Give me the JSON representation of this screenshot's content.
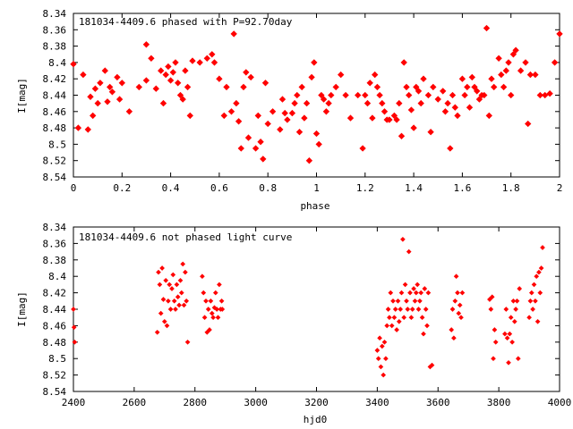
{
  "chart_data": [
    {
      "type": "scatter",
      "title": "181034-4409.6 phased with P=92.70day",
      "xlabel": "phase",
      "ylabel": "I[mag]",
      "xlim": [
        0,
        2
      ],
      "ylim": [
        8.54,
        8.34
      ],
      "y_inverted": true,
      "grid": false,
      "marker_color": "#ff0000",
      "xticks": [
        "0",
        "0.2",
        "0.4",
        "0.6",
        "0.8",
        "1",
        "1.2",
        "1.4",
        "1.6",
        "1.8",
        "2"
      ],
      "yticks": [
        "8.34",
        "8.36",
        "8.38",
        "8.4",
        "8.42",
        "8.44",
        "8.46",
        "8.48",
        "8.5",
        "8.52",
        "8.54"
      ],
      "points": [
        [
          0.0,
          8.402
        ],
        [
          0.02,
          8.48
        ],
        [
          0.04,
          8.415
        ],
        [
          0.06,
          8.482
        ],
        [
          0.07,
          8.442
        ],
        [
          0.08,
          8.465
        ],
        [
          0.09,
          8.432
        ],
        [
          0.1,
          8.45
        ],
        [
          0.11,
          8.425
        ],
        [
          0.13,
          8.41
        ],
        [
          0.14,
          8.448
        ],
        [
          0.15,
          8.43
        ],
        [
          0.16,
          8.436
        ],
        [
          0.18,
          8.418
        ],
        [
          0.19,
          8.445
        ],
        [
          0.2,
          8.425
        ],
        [
          0.23,
          8.46
        ],
        [
          0.27,
          8.43
        ],
        [
          0.3,
          8.378
        ],
        [
          0.3,
          8.422
        ],
        [
          0.32,
          8.395
        ],
        [
          0.34,
          8.432
        ],
        [
          0.36,
          8.41
        ],
        [
          0.37,
          8.45
        ],
        [
          0.38,
          8.415
        ],
        [
          0.39,
          8.405
        ],
        [
          0.4,
          8.422
        ],
        [
          0.41,
          8.412
        ],
        [
          0.42,
          8.4
        ],
        [
          0.43,
          8.425
        ],
        [
          0.44,
          8.44
        ],
        [
          0.45,
          8.445
        ],
        [
          0.46,
          8.41
        ],
        [
          0.47,
          8.43
        ],
        [
          0.48,
          8.465
        ],
        [
          0.49,
          8.398
        ],
        [
          0.52,
          8.4
        ],
        [
          0.55,
          8.395
        ],
        [
          0.57,
          8.39
        ],
        [
          0.58,
          8.4
        ],
        [
          0.6,
          8.42
        ],
        [
          0.62,
          8.465
        ],
        [
          0.63,
          8.43
        ],
        [
          0.65,
          8.46
        ],
        [
          0.66,
          8.365
        ],
        [
          0.67,
          8.45
        ],
        [
          0.68,
          8.472
        ],
        [
          0.69,
          8.505
        ],
        [
          0.7,
          8.43
        ],
        [
          0.71,
          8.412
        ],
        [
          0.72,
          8.492
        ],
        [
          0.73,
          8.418
        ],
        [
          0.75,
          8.505
        ],
        [
          0.76,
          8.465
        ],
        [
          0.77,
          8.497
        ],
        [
          0.78,
          8.518
        ],
        [
          0.79,
          8.425
        ],
        [
          0.8,
          8.475
        ],
        [
          0.82,
          8.46
        ],
        [
          0.85,
          8.482
        ],
        [
          0.86,
          8.445
        ],
        [
          0.87,
          8.462
        ],
        [
          0.88,
          8.47
        ],
        [
          0.9,
          8.462
        ],
        [
          0.91,
          8.45
        ],
        [
          0.92,
          8.44
        ],
        [
          0.93,
          8.485
        ],
        [
          0.94,
          8.43
        ],
        [
          0.95,
          8.468
        ],
        [
          0.96,
          8.45
        ],
        [
          0.97,
          8.52
        ],
        [
          0.98,
          8.418
        ],
        [
          0.99,
          8.4
        ],
        [
          1.0,
          8.487
        ],
        [
          1.01,
          8.5
        ],
        [
          1.02,
          8.44
        ],
        [
          1.03,
          8.445
        ],
        [
          1.04,
          8.46
        ],
        [
          1.05,
          8.45
        ],
        [
          1.06,
          8.44
        ],
        [
          1.08,
          8.43
        ],
        [
          1.1,
          8.415
        ],
        [
          1.12,
          8.44
        ],
        [
          1.14,
          8.468
        ],
        [
          1.17,
          8.44
        ],
        [
          1.19,
          8.505
        ],
        [
          1.2,
          8.44
        ],
        [
          1.21,
          8.45
        ],
        [
          1.22,
          8.425
        ],
        [
          1.23,
          8.468
        ],
        [
          1.24,
          8.415
        ],
        [
          1.25,
          8.43
        ],
        [
          1.26,
          8.44
        ],
        [
          1.27,
          8.45
        ],
        [
          1.28,
          8.46
        ],
        [
          1.29,
          8.47
        ],
        [
          1.3,
          8.47
        ],
        [
          1.32,
          8.465
        ],
        [
          1.33,
          8.47
        ],
        [
          1.34,
          8.45
        ],
        [
          1.35,
          8.49
        ],
        [
          1.36,
          8.4
        ],
        [
          1.37,
          8.43
        ],
        [
          1.38,
          8.44
        ],
        [
          1.39,
          8.458
        ],
        [
          1.4,
          8.48
        ],
        [
          1.41,
          8.43
        ],
        [
          1.42,
          8.435
        ],
        [
          1.43,
          8.45
        ],
        [
          1.44,
          8.42
        ],
        [
          1.46,
          8.44
        ],
        [
          1.47,
          8.485
        ],
        [
          1.48,
          8.43
        ],
        [
          1.5,
          8.445
        ],
        [
          1.52,
          8.435
        ],
        [
          1.53,
          8.46
        ],
        [
          1.54,
          8.45
        ],
        [
          1.55,
          8.505
        ],
        [
          1.56,
          8.44
        ],
        [
          1.57,
          8.455
        ],
        [
          1.58,
          8.465
        ],
        [
          1.6,
          8.42
        ],
        [
          1.61,
          8.44
        ],
        [
          1.62,
          8.43
        ],
        [
          1.63,
          8.455
        ],
        [
          1.64,
          8.418
        ],
        [
          1.65,
          8.43
        ],
        [
          1.66,
          8.435
        ],
        [
          1.67,
          8.445
        ],
        [
          1.68,
          8.44
        ],
        [
          1.69,
          8.44
        ],
        [
          1.7,
          8.358
        ],
        [
          1.71,
          8.465
        ],
        [
          1.72,
          8.42
        ],
        [
          1.73,
          8.43
        ],
        [
          1.75,
          8.395
        ],
        [
          1.76,
          8.415
        ],
        [
          1.77,
          8.43
        ],
        [
          1.78,
          8.41
        ],
        [
          1.79,
          8.4
        ],
        [
          1.8,
          8.44
        ],
        [
          1.81,
          8.39
        ],
        [
          1.82,
          8.385
        ],
        [
          1.84,
          8.41
        ],
        [
          1.86,
          8.4
        ],
        [
          1.87,
          8.475
        ],
        [
          1.88,
          8.415
        ],
        [
          1.9,
          8.415
        ],
        [
          1.92,
          8.44
        ],
        [
          1.94,
          8.44
        ],
        [
          1.96,
          8.438
        ],
        [
          1.98,
          8.4
        ],
        [
          2.0,
          8.365
        ]
      ]
    },
    {
      "type": "scatter",
      "title": "181034-4409.6 not phased light curve",
      "xlabel": "hjd0",
      "ylabel": "I[mag]",
      "xlim": [
        2400,
        4000
      ],
      "ylim": [
        8.54,
        8.34
      ],
      "y_inverted": true,
      "grid": false,
      "marker_color": "#ff0000",
      "xticks": [
        "2400",
        "2600",
        "2800",
        "3000",
        "3200",
        "3400",
        "3600",
        "3800",
        "4000"
      ],
      "yticks": [
        "8.34",
        "8.36",
        "8.38",
        "8.4",
        "8.42",
        "8.44",
        "8.46",
        "8.48",
        "8.5",
        "8.52",
        "8.54"
      ],
      "points": [
        [
          2400,
          8.44
        ],
        [
          2402,
          8.462
        ],
        [
          2404,
          8.48
        ],
        [
          2676,
          8.468
        ],
        [
          2680,
          8.395
        ],
        [
          2684,
          8.41
        ],
        [
          2688,
          8.445
        ],
        [
          2692,
          8.39
        ],
        [
          2696,
          8.428
        ],
        [
          2700,
          8.455
        ],
        [
          2704,
          8.405
        ],
        [
          2708,
          8.46
        ],
        [
          2712,
          8.43
        ],
        [
          2716,
          8.41
        ],
        [
          2720,
          8.44
        ],
        [
          2724,
          8.415
        ],
        [
          2728,
          8.398
        ],
        [
          2732,
          8.43
        ],
        [
          2736,
          8.44
        ],
        [
          2740,
          8.41
        ],
        [
          2744,
          8.425
        ],
        [
          2748,
          8.435
        ],
        [
          2752,
          8.405
        ],
        [
          2756,
          8.42
        ],
        [
          2760,
          8.385
        ],
        [
          2764,
          8.435
        ],
        [
          2768,
          8.395
        ],
        [
          2772,
          8.43
        ],
        [
          2776,
          8.48
        ],
        [
          2824,
          8.4
        ],
        [
          2828,
          8.42
        ],
        [
          2832,
          8.45
        ],
        [
          2836,
          8.43
        ],
        [
          2840,
          8.468
        ],
        [
          2844,
          8.44
        ],
        [
          2848,
          8.465
        ],
        [
          2852,
          8.43
        ],
        [
          2856,
          8.445
        ],
        [
          2860,
          8.45
        ],
        [
          2864,
          8.438
        ],
        [
          2868,
          8.42
        ],
        [
          2872,
          8.44
        ],
        [
          2876,
          8.45
        ],
        [
          2880,
          8.41
        ],
        [
          2884,
          8.44
        ],
        [
          2888,
          8.43
        ],
        [
          2890,
          8.44
        ],
        [
          3400,
          8.49
        ],
        [
          3404,
          8.5
        ],
        [
          3408,
          8.475
        ],
        [
          3412,
          8.51
        ],
        [
          3416,
          8.485
        ],
        [
          3420,
          8.52
        ],
        [
          3424,
          8.48
        ],
        [
          3428,
          8.5
        ],
        [
          3432,
          8.46
        ],
        [
          3436,
          8.44
        ],
        [
          3440,
          8.45
        ],
        [
          3444,
          8.42
        ],
        [
          3448,
          8.46
        ],
        [
          3452,
          8.43
        ],
        [
          3456,
          8.45
        ],
        [
          3460,
          8.44
        ],
        [
          3464,
          8.465
        ],
        [
          3468,
          8.43
        ],
        [
          3472,
          8.455
        ],
        [
          3476,
          8.44
        ],
        [
          3480,
          8.42
        ],
        [
          3484,
          8.355
        ],
        [
          3488,
          8.45
        ],
        [
          3492,
          8.41
        ],
        [
          3496,
          8.43
        ],
        [
          3500,
          8.44
        ],
        [
          3504,
          8.37
        ],
        [
          3508,
          8.42
        ],
        [
          3512,
          8.45
        ],
        [
          3516,
          8.44
        ],
        [
          3520,
          8.415
        ],
        [
          3524,
          8.43
        ],
        [
          3528,
          8.42
        ],
        [
          3532,
          8.41
        ],
        [
          3536,
          8.44
        ],
        [
          3540,
          8.43
        ],
        [
          3544,
          8.42
        ],
        [
          3548,
          8.45
        ],
        [
          3552,
          8.47
        ],
        [
          3556,
          8.415
        ],
        [
          3560,
          8.44
        ],
        [
          3564,
          8.46
        ],
        [
          3568,
          8.42
        ],
        [
          3574,
          8.51
        ],
        [
          3580,
          8.508
        ],
        [
          3644,
          8.465
        ],
        [
          3648,
          8.44
        ],
        [
          3652,
          8.475
        ],
        [
          3656,
          8.43
        ],
        [
          3660,
          8.4
        ],
        [
          3664,
          8.42
        ],
        [
          3668,
          8.445
        ],
        [
          3672,
          8.435
        ],
        [
          3676,
          8.45
        ],
        [
          3680,
          8.42
        ],
        [
          3770,
          8.428
        ],
        [
          3774,
          8.44
        ],
        [
          3778,
          8.425
        ],
        [
          3782,
          8.5
        ],
        [
          3786,
          8.465
        ],
        [
          3790,
          8.48
        ],
        [
          3820,
          8.47
        ],
        [
          3824,
          8.44
        ],
        [
          3828,
          8.475
        ],
        [
          3832,
          8.505
        ],
        [
          3836,
          8.47
        ],
        [
          3840,
          8.45
        ],
        [
          3844,
          8.48
        ],
        [
          3848,
          8.43
        ],
        [
          3852,
          8.455
        ],
        [
          3856,
          8.44
        ],
        [
          3860,
          8.43
        ],
        [
          3864,
          8.5
        ],
        [
          3868,
          8.415
        ],
        [
          3900,
          8.45
        ],
        [
          3904,
          8.43
        ],
        [
          3908,
          8.42
        ],
        [
          3912,
          8.44
        ],
        [
          3916,
          8.41
        ],
        [
          3920,
          8.43
        ],
        [
          3924,
          8.4
        ],
        [
          3928,
          8.455
        ],
        [
          3932,
          8.395
        ],
        [
          3936,
          8.42
        ],
        [
          3940,
          8.39
        ],
        [
          3944,
          8.365
        ]
      ]
    }
  ]
}
